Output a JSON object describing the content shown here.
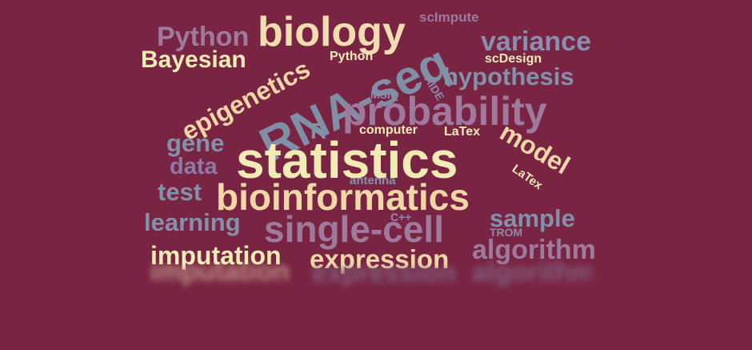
{
  "colors": {
    "background": "#7a2443",
    "cream": "#f2ebb6",
    "sand": "#f0d7a8",
    "slate": "#7f8fa6",
    "mauve": "#a07a9d"
  },
  "words": [
    {
      "text": "biology",
      "color": "#f2ddb0"
    },
    {
      "text": "Python",
      "color": "#a07a9d"
    },
    {
      "text": "scImpute",
      "color": "#a07a9d"
    },
    {
      "text": "variance",
      "color": "#8a8fae"
    },
    {
      "text": "Bayesian",
      "color": "#f2ebb6"
    },
    {
      "text": "epigenetics",
      "color": "#f0d7a8"
    },
    {
      "text": "Python",
      "color": "#f2ebb6"
    },
    {
      "text": "RNA-seq",
      "color": "#7f8fa6"
    },
    {
      "text": "scDesign",
      "color": "#f2ebb6"
    },
    {
      "text": "hypothesis",
      "color": "#8491ab"
    },
    {
      "text": "AIDE",
      "color": "#8e8aae"
    },
    {
      "text": "MSIQ",
      "color": "#8e8aae"
    },
    {
      "text": "probability",
      "color": "#a07a9d"
    },
    {
      "text": "gene",
      "color": "#8491ab"
    },
    {
      "text": "R",
      "color": "#8491ab"
    },
    {
      "text": "computer",
      "color": "#f2ebb6"
    },
    {
      "text": "LaTex",
      "color": "#f2ebb6"
    },
    {
      "text": "model",
      "color": "#f0d7a8"
    },
    {
      "text": "statistics",
      "color": "#f2ebb6"
    },
    {
      "text": "data",
      "color": "#8e7aa6"
    },
    {
      "text": "LaTex",
      "color": "#f2ebb6"
    },
    {
      "text": "antenna",
      "color": "#8491ab"
    },
    {
      "text": "test",
      "color": "#8491ab"
    },
    {
      "text": "bioinformatics",
      "color": "#f0d7a8"
    },
    {
      "text": "C++",
      "color": "#8e8aae"
    },
    {
      "text": "learning",
      "color": "#8491ab"
    },
    {
      "text": "single-cell",
      "color": "#a07a9d"
    },
    {
      "text": "sample",
      "color": "#8491ab"
    },
    {
      "text": "TROM",
      "color": "#8e8aae"
    },
    {
      "text": "imputation",
      "color": "#f2ebb6"
    },
    {
      "text": "expression",
      "color": "#f0d7a8"
    },
    {
      "text": "algorithm",
      "color": "#a07a9d"
    }
  ]
}
